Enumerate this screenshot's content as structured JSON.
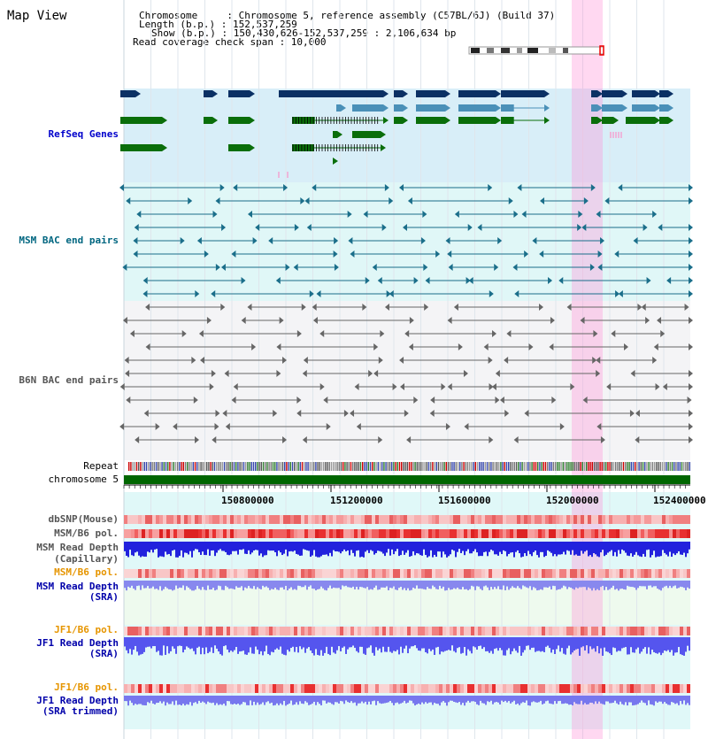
{
  "header": {
    "map_title": "Map View",
    "info_lines": [
      "Chromosome     : Chromosome 5, reference assembly (C57BL/6J) (Build 37)",
      "Length (b.p.) : 152,537,259",
      "Show (b.p.) : 150,430,626-152,537,259 : 2,106,634 bp",
      "Read coverage check span : 10,000"
    ]
  },
  "tracks": {
    "refseq_genes": "RefSeq Genes",
    "msm_bac": "MSM BAC end pairs",
    "b6n_bac": "B6N BAC end pairs",
    "repeat": "Repeat",
    "chromosome": "chromosome 5",
    "dbsnp": "dbSNP(Mouse)",
    "msm_b6_pol": "MSM/B6 pol.",
    "msm_read_depth_cap": [
      "MSM Read Depth",
      "(Capillary)"
    ],
    "msm_b6_pol2": "MSM/B6 pol.",
    "msm_read_depth_sra": [
      "MSM Read Depth",
      "(SRA)"
    ],
    "jf1_b6_pol": "JF1/B6 pol.",
    "jf1_read_depth_sra": [
      "JF1 Read Depth",
      "(SRA)"
    ],
    "jf1_b6_pol2": "JF1/B6 pol.",
    "jf1_read_depth_trim": [
      "JF1 Read Depth",
      "(SRA trimmed)"
    ]
  },
  "axis": {
    "ticks": [
      "150800000",
      "151200000",
      "151600000",
      "152000000",
      "152400000"
    ]
  },
  "colors": {
    "refseq_label": "#0000cc",
    "msm_bac_label": "#006680",
    "b6n_bac_label": "#555555",
    "msm_pol_label": "#e69500",
    "read_depth_label": "#0000aa",
    "highlight": "#ffd2f0",
    "gene_navy": "#0b3064",
    "gene_blue": "#4a90b8",
    "gene_green": "#0a6e0a",
    "bac_teal": "#1a6e8a",
    "bac_gray": "#666666",
    "chromosome_bar": "#006600"
  }
}
